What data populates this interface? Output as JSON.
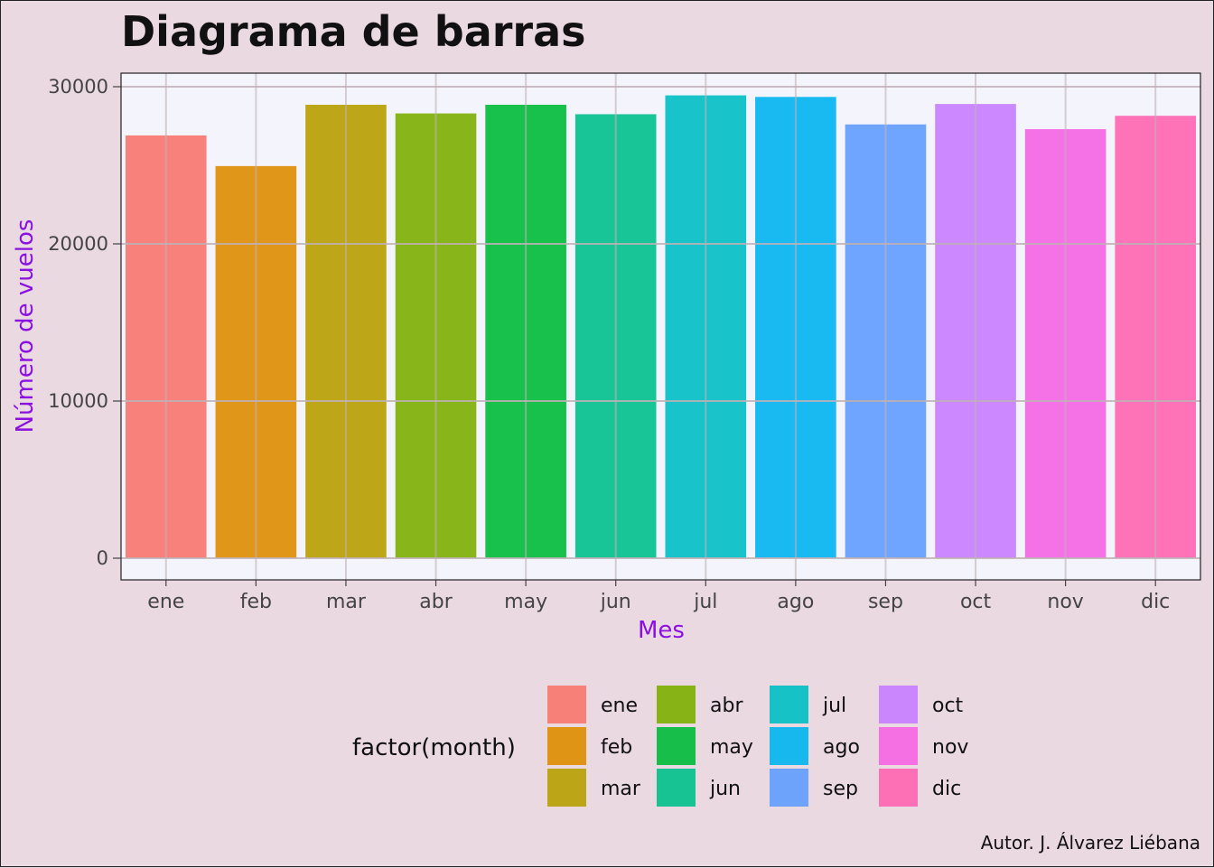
{
  "chart_data": {
    "type": "bar",
    "title": "Diagrama de barras",
    "xlabel": "Mes",
    "ylabel": "Número de vuelos",
    "categories": [
      "ene",
      "feb",
      "mar",
      "abr",
      "may",
      "jun",
      "jul",
      "ago",
      "sep",
      "oct",
      "nov",
      "dic"
    ],
    "values": [
      26900,
      24950,
      28850,
      28300,
      28850,
      28250,
      29450,
      29350,
      27600,
      28900,
      27300,
      28150
    ],
    "colors": [
      "#F8766D",
      "#DE8C00",
      "#B79F00",
      "#7CAE00",
      "#00BA38",
      "#00C08B",
      "#00BFC4",
      "#00B4F0",
      "#619CFF",
      "#C77CFF",
      "#F564E3",
      "#FF64B0"
    ],
    "ylim": [
      0,
      30000
    ],
    "yticks": [
      0,
      10000,
      20000,
      30000
    ],
    "ytick_labels": [
      "0",
      "10000",
      "20000",
      "30000"
    ],
    "grid": true,
    "legend": {
      "title": "factor(month)",
      "position": "bottom",
      "labels": [
        "ene",
        "feb",
        "mar",
        "abr",
        "may",
        "jun",
        "jul",
        "ago",
        "sep",
        "oct",
        "nov",
        "dic"
      ]
    },
    "caption": "Autor. J. Álvarez Liébana",
    "axis_label_color": "#8a10e0",
    "panel_background": "#f4f4fc",
    "page_background": "#ead9e0",
    "grid_color": "#c0b0b6"
  }
}
